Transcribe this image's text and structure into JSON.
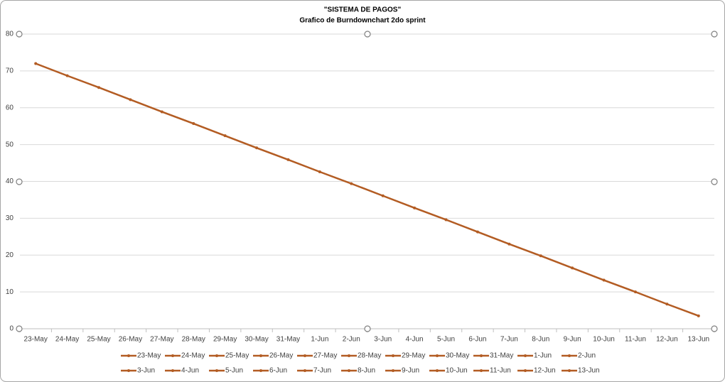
{
  "chart_data": {
    "type": "line",
    "title": "\"SISTEMA DE PAGOS\"",
    "subtitle": "Grafico de Burndownchart 2do sprint",
    "categories": [
      "23-May",
      "24-May",
      "25-May",
      "26-May",
      "27-May",
      "28-May",
      "29-May",
      "30-May",
      "31-May",
      "1-Jun",
      "2-Jun",
      "3-Jun",
      "4-Jun",
      "5-Jun",
      "6-Jun",
      "7-Jun",
      "8-Jun",
      "9-Jun",
      "10-Jun",
      "11-Jun",
      "12-Jun",
      "13-Jun"
    ],
    "values": [
      72,
      68.7,
      65.5,
      62.2,
      58.9,
      55.7,
      52.4,
      49.1,
      45.9,
      42.6,
      39.4,
      36.1,
      32.8,
      29.6,
      26.3,
      23.0,
      19.8,
      16.5,
      13.2,
      10.0,
      6.7,
      3.5
    ],
    "color": "#b35c23",
    "ylim": [
      0,
      80
    ],
    "yticks": [
      0,
      10,
      20,
      30,
      40,
      50,
      60,
      70,
      80
    ],
    "grid": true,
    "legend": "bottom"
  }
}
